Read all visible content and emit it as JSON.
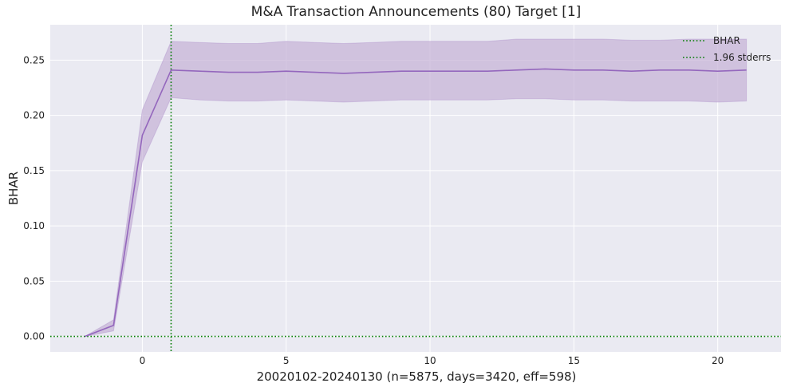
{
  "chart_data": {
    "type": "line",
    "title": "M&A Transaction Announcements (80) Target [1]",
    "xlabel": "20020102-20240130 (n=5875, days=3420, eff=598)",
    "ylabel": "BHAR",
    "xlim": [
      -3.2,
      22.2
    ],
    "ylim": [
      -0.014,
      0.282
    ],
    "x_ticks": [
      0,
      5,
      10,
      15,
      20
    ],
    "y_ticks": [
      0.0,
      0.05,
      0.1,
      0.15,
      0.2,
      0.25
    ],
    "y_tick_labels": [
      "0.00",
      "0.05",
      "0.10",
      "0.15",
      "0.20",
      "0.25"
    ],
    "grid": true,
    "legend_position": "top-right",
    "legend": [
      "BHAR",
      "1.96 stderrs"
    ],
    "reference_lines": {
      "vertical_x": 1,
      "horizontal_y": 0
    },
    "colors": {
      "line": "#9467bd",
      "band": "#c5b0d5",
      "reference": "#007a00",
      "background": "#eaeaf2"
    },
    "series": [
      {
        "name": "BHAR",
        "x": [
          -2,
          -1,
          0,
          1,
          2,
          3,
          4,
          5,
          6,
          7,
          8,
          9,
          10,
          11,
          12,
          13,
          14,
          15,
          16,
          17,
          18,
          19,
          20,
          21
        ],
        "y": [
          0.0,
          0.01,
          0.182,
          0.241,
          0.24,
          0.239,
          0.239,
          0.24,
          0.239,
          0.238,
          0.239,
          0.24,
          0.24,
          0.24,
          0.24,
          0.241,
          0.242,
          0.241,
          0.241,
          0.24,
          0.241,
          0.241,
          0.24,
          0.241
        ],
        "lower": [
          0.0,
          0.005,
          0.158,
          0.216,
          0.214,
          0.213,
          0.213,
          0.214,
          0.213,
          0.212,
          0.213,
          0.214,
          0.214,
          0.214,
          0.214,
          0.215,
          0.215,
          0.214,
          0.214,
          0.213,
          0.213,
          0.213,
          0.212,
          0.213
        ],
        "upper": [
          0.0,
          0.015,
          0.205,
          0.267,
          0.266,
          0.265,
          0.265,
          0.267,
          0.266,
          0.265,
          0.266,
          0.267,
          0.267,
          0.267,
          0.267,
          0.269,
          0.269,
          0.269,
          0.269,
          0.268,
          0.268,
          0.269,
          0.269,
          0.269
        ]
      }
    ]
  }
}
